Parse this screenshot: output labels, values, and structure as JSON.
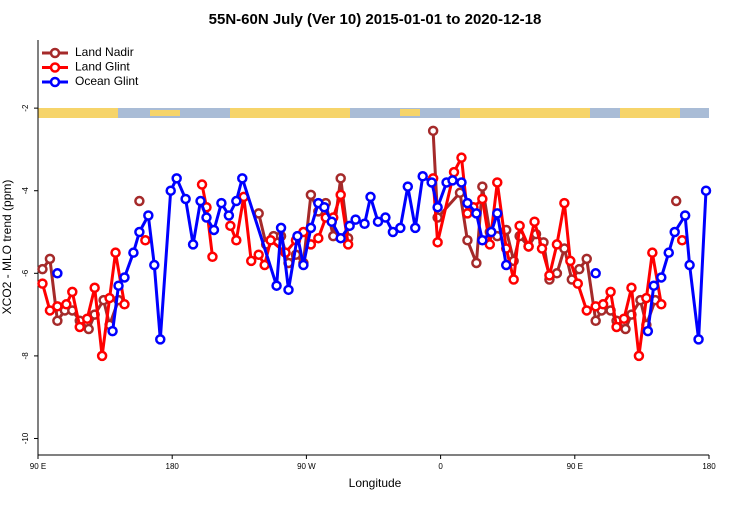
{
  "chart_data": {
    "type": "line",
    "title": "55N-60N July (Ver 10)   2015-01-01 to 2020-12-18",
    "xlabel": "Longitude",
    "ylabel": "XCO2 - MLO trend (ppm)",
    "xlim": [
      90,
      540
    ],
    "xticks": [
      {
        "value": 90,
        "label": "90 E"
      },
      {
        "value": 180,
        "label": "180"
      },
      {
        "value": 270,
        "label": "90 W"
      },
      {
        "value": 360,
        "label": "0"
      },
      {
        "value": 450,
        "label": "90 E"
      },
      {
        "value": 540,
        "label": "180"
      }
    ],
    "ylim": [
      -10.4,
      -0.35
    ],
    "yticks": [
      -10,
      -8,
      -6,
      -4,
      -2
    ],
    "legend": "upper left",
    "series": [
      {
        "name": "Land Nadir",
        "color": "#a52a2a",
        "x": [
          93,
          98,
          103,
          108,
          113,
          118,
          124,
          128,
          134,
          138,
          144,
          null,
          158,
          null,
          238,
          243,
          248,
          253,
          258,
          263,
          268,
          273,
          278,
          283,
          288,
          293,
          298,
          null,
          355,
          358,
          373,
          378,
          384,
          388,
          393,
          398,
          404,
          409,
          413,
          419,
          424,
          429,
          433,
          438,
          443,
          448,
          453,
          458,
          464,
          468,
          474,
          478,
          484,
          488,
          494,
          498,
          504,
          null,
          518
        ],
        "values": [
          -5.9,
          -5.65,
          -7.15,
          -6.9,
          -6.9,
          -7.15,
          -7.35,
          -7.0,
          -6.65,
          -7.25,
          -6.65,
          null,
          -4.25,
          null,
          -4.55,
          -5.3,
          -5.1,
          -5.1,
          -5.75,
          -5.55,
          -5.75,
          -4.1,
          -4.5,
          -4.3,
          -5.1,
          -3.7,
          -5.15,
          null,
          -2.55,
          -4.65,
          -4.05,
          -5.2,
          -5.75,
          -3.9,
          -5.0,
          -5.1,
          -4.95,
          -5.7,
          -5.1,
          -5.35,
          -5.05,
          -5.25,
          -6.15,
          -6.0,
          -5.4,
          -6.15,
          -5.9,
          -5.65,
          -7.15,
          -6.9,
          -6.9,
          -7.15,
          -7.35,
          -7.0,
          -6.65,
          -7.25,
          -6.65,
          null,
          -4.25
        ]
      },
      {
        "name": "Land Glint",
        "color": "#ff0000",
        "x": [
          93,
          98,
          103,
          109,
          113,
          118,
          123,
          128,
          133,
          138,
          142,
          148,
          null,
          162,
          null,
          200,
          203,
          207,
          null,
          219,
          223,
          228,
          233,
          238,
          242,
          246,
          256,
          263,
          268,
          273,
          278,
          283,
          288,
          293,
          298,
          null,
          355,
          358,
          369,
          374,
          378,
          382,
          388,
          393,
          398,
          404,
          409,
          413,
          419,
          423,
          428,
          433,
          438,
          443,
          447,
          452,
          458,
          464,
          469,
          474,
          478,
          483,
          488,
          493,
          498,
          502,
          508,
          null,
          522
        ],
        "values": [
          -6.25,
          -6.9,
          -6.8,
          -6.75,
          -6.45,
          -7.3,
          -7.1,
          -6.35,
          -8.0,
          -6.6,
          -5.5,
          -6.75,
          null,
          -5.2,
          null,
          -3.85,
          -4.4,
          -5.6,
          null,
          -4.85,
          -5.2,
          -4.15,
          -5.7,
          -5.55,
          -5.8,
          -5.2,
          -5.5,
          -5.2,
          -5.0,
          -5.3,
          -5.15,
          -4.65,
          -4.65,
          -4.1,
          -5.3,
          null,
          -3.7,
          -5.25,
          -3.55,
          -3.2,
          -4.55,
          -4.4,
          -4.2,
          -5.3,
          -3.8,
          -5.4,
          -6.15,
          -4.85,
          -5.35,
          -4.75,
          -5.4,
          -6.05,
          -5.3,
          -4.3,
          -5.7,
          -6.25,
          -6.9,
          -6.8,
          -6.75,
          -6.45,
          -7.3,
          -7.1,
          -6.35,
          -8.0,
          -6.6,
          -5.5,
          -6.75,
          null,
          -5.2
        ]
      },
      {
        "name": "Ocean Glint",
        "color": "#0000ff",
        "x": [
          103,
          null,
          140,
          144,
          148,
          154,
          158,
          164,
          168,
          172,
          179,
          183,
          189,
          194,
          199,
          203,
          208,
          213,
          218,
          223,
          227,
          250,
          253,
          258,
          264,
          268,
          273,
          278,
          282,
          287,
          293,
          299,
          303,
          309,
          313,
          318,
          323,
          328,
          333,
          338,
          343,
          348,
          354,
          358,
          364,
          368,
          374,
          378,
          384,
          388,
          394,
          398,
          404,
          null,
          464,
          null,
          499,
          503,
          508,
          513,
          517,
          524,
          527,
          533,
          538
        ],
        "values": [
          -6.0,
          null,
          -7.4,
          -6.3,
          -6.1,
          -5.5,
          -5.0,
          -4.6,
          -5.8,
          -7.6,
          -4.0,
          -3.7,
          -4.2,
          -5.3,
          -4.25,
          -4.65,
          -4.95,
          -4.3,
          -4.6,
          -4.25,
          -3.7,
          -6.3,
          -4.9,
          -6.4,
          -5.1,
          -5.8,
          -4.9,
          -4.3,
          -4.4,
          -4.75,
          -5.15,
          -4.85,
          -4.7,
          -4.8,
          -4.15,
          -4.75,
          -4.65,
          -5.0,
          -4.9,
          -3.9,
          -4.9,
          -3.65,
          -3.8,
          -4.4,
          -3.8,
          -3.75,
          -3.8,
          -4.3,
          -4.55,
          -5.2,
          -5.0,
          -4.55,
          -5.8,
          null,
          -6.0,
          null,
          -7.4,
          -6.3,
          -6.1,
          -5.5,
          -5.0,
          -4.6,
          -5.8,
          -7.6,
          -4.0
        ]
      }
    ]
  }
}
